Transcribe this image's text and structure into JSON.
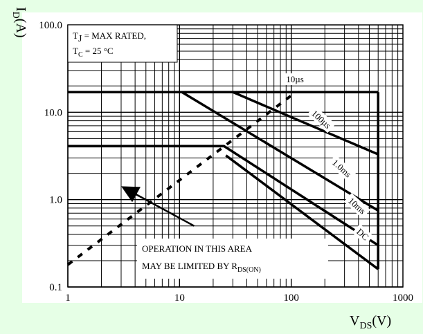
{
  "chart_data": {
    "type": "line",
    "title": "",
    "xlabel": {
      "main": "V",
      "sub": "DS",
      "unit": "(V)"
    },
    "ylabel": {
      "main": "I",
      "sub": "D",
      "unit": "(A)"
    },
    "x_scale": "log",
    "y_scale": "log",
    "xlim": [
      1,
      1000
    ],
    "ylim": [
      0.1,
      100
    ],
    "grid": true,
    "x_ticks": [
      {
        "value": 1,
        "label": "1"
      },
      {
        "value": 10,
        "label": "10"
      },
      {
        "value": 100,
        "label": "100"
      },
      {
        "value": 1000,
        "label": "1000"
      }
    ],
    "y_ticks": [
      {
        "value": 0.1,
        "label": "0.1"
      },
      {
        "value": 1,
        "label": "1.0"
      },
      {
        "value": 10,
        "label": "10.0"
      },
      {
        "value": 100,
        "label": "100.0"
      }
    ],
    "conditions": {
      "line1": {
        "main": "T",
        "sub": "J",
        "rest": " = MAX RATED,"
      },
      "line2": {
        "main": "T",
        "sub": "C",
        "rest": " = 25 °C"
      }
    },
    "series": [
      {
        "name": "10µs",
        "label_at": [
          90,
          22
        ],
        "label_rotation": 0,
        "points": [
          [
            1,
            17
          ],
          [
            600,
            17
          ]
        ]
      },
      {
        "name": "100µs",
        "label_at": [
          150,
          9.5
        ],
        "label_rotation": 42,
        "points": [
          [
            30,
            17
          ],
          [
            600,
            3.3
          ]
        ]
      },
      {
        "name": "1.0ms",
        "label_at": [
          230,
          2.6
        ],
        "label_rotation": 42,
        "points": [
          [
            10.5,
            17
          ],
          [
            600,
            0.75
          ]
        ]
      },
      {
        "name": "10ms",
        "label_at": [
          320,
          0.95
        ],
        "label_rotation": 42,
        "points": [
          [
            1,
            4.1
          ],
          [
            25,
            4.1
          ],
          [
            600,
            0.3
          ]
        ]
      },
      {
        "name": "DC",
        "label_at": [
          380,
          0.42
        ],
        "label_rotation": 42,
        "points": [
          [
            26,
            3.2
          ],
          [
            600,
            0.16
          ]
        ]
      }
    ],
    "vertical_limit": {
      "x": 600,
      "y_from": 0.16,
      "y_to": 17
    },
    "rds_on_limit": {
      "points": [
        [
          1,
          0.18
        ],
        [
          110,
          17
        ]
      ]
    },
    "annotation": {
      "line1": "OPERATION IN THIS AREA",
      "line2_main": "MAY BE LIMITED BY R",
      "line2_sub": "DS(ON)",
      "arrow_from": [
        13.5,
        0.5
      ],
      "arrow_to": [
        3.3,
        1.33
      ]
    }
  }
}
